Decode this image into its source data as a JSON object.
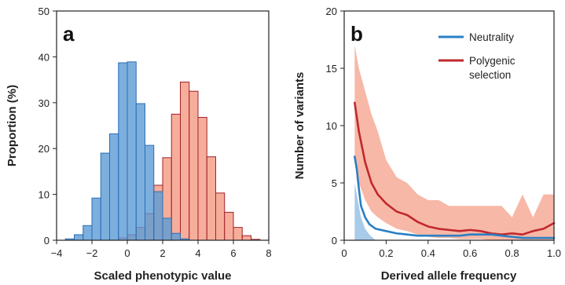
{
  "chart_data": [
    {
      "type": "bar",
      "panel_label": "a",
      "xlabel": "Scaled phenotypic value",
      "ylabel": "Proportion (%)",
      "xlim": [
        -4,
        8
      ],
      "ylim": [
        0,
        50
      ],
      "xticks": [
        -4,
        -2,
        0,
        2,
        4,
        6,
        8
      ],
      "xtick_labels": [
        "−4",
        "−2",
        "0",
        "2",
        "4",
        "6",
        "8"
      ],
      "yticks": [
        0,
        10,
        20,
        30,
        40,
        50
      ],
      "ytick_labels": [
        "0",
        "10",
        "20",
        "30",
        "40",
        "50"
      ],
      "bin_width": 0.5,
      "series": [
        {
          "color": "#5b9bd5",
          "edge": "#2a6db5",
          "bin_starts": [
            -3.5,
            -3.0,
            -2.5,
            -2.0,
            -1.5,
            -1.0,
            -0.5,
            0.0,
            0.5,
            1.0,
            1.5,
            2.0,
            2.5,
            3.0
          ],
          "values": [
            0.3,
            1.2,
            3.2,
            9.2,
            19.0,
            23.2,
            38.7,
            38.9,
            29.8,
            20.7,
            10.6,
            4.8,
            1.5,
            0.3
          ]
        },
        {
          "color": "#f4a08a",
          "edge": "#a0202a",
          "bin_starts": [
            -0.5,
            0.0,
            0.5,
            1.0,
            1.5,
            2.0,
            2.5,
            3.0,
            3.5,
            4.0,
            4.5,
            5.0,
            5.5,
            6.0,
            6.5,
            7.0
          ],
          "values": [
            0.5,
            1.2,
            2.8,
            5.8,
            12.0,
            18.0,
            27.5,
            34.5,
            32.5,
            26.8,
            18.2,
            10.3,
            6.1,
            2.8,
            1.0,
            0.2
          ]
        }
      ]
    },
    {
      "type": "area",
      "panel_label": "b",
      "xlabel": "Derived allele frequency",
      "ylabel": "Number of variants",
      "xlim": [
        0,
        1.0
      ],
      "ylim": [
        0,
        20
      ],
      "xticks": [
        0,
        0.2,
        0.4,
        0.6,
        0.8,
        1.0
      ],
      "xtick_labels": [
        "0",
        "0.2",
        "0.4",
        "0.6",
        "0.8",
        "1.0"
      ],
      "yticks": [
        0,
        5,
        10,
        15,
        20
      ],
      "ytick_labels": [
        "0",
        "5",
        "10",
        "15",
        "20"
      ],
      "legend_position": "top-right",
      "series": [
        {
          "name": "Neutrality",
          "color": "#2a7fc4",
          "band_color": "#6fa8dc",
          "x": [
            0.05,
            0.06,
            0.07,
            0.08,
            0.1,
            0.12,
            0.15,
            0.2,
            0.25,
            0.3,
            0.35,
            0.4,
            0.45,
            0.5,
            0.55,
            0.6,
            0.65,
            0.7,
            0.75,
            0.8,
            0.85,
            0.9,
            0.95,
            1.0
          ],
          "y": [
            7.3,
            6.2,
            4.5,
            3.0,
            2.0,
            1.4,
            1.0,
            0.8,
            0.6,
            0.5,
            0.4,
            0.4,
            0.4,
            0.4,
            0.4,
            0.5,
            0.5,
            0.5,
            0.4,
            0.3,
            0.2,
            0.2,
            0.2,
            0.2
          ],
          "band_low": [
            0,
            0,
            0,
            0,
            0,
            0,
            0,
            0,
            0,
            0,
            0,
            0,
            0,
            0,
            0,
            0,
            0,
            0,
            0,
            0,
            0,
            0,
            0,
            0
          ],
          "band_high": [
            5.0,
            4.0,
            3.0,
            2.0,
            1.0,
            0.5,
            0,
            0,
            0,
            0,
            0,
            0,
            0,
            0,
            0,
            0,
            0,
            0,
            0,
            0,
            0,
            0,
            0,
            0
          ]
        },
        {
          "name": "Polygenic selection",
          "legend_lines": [
            "Polygenic",
            "selection"
          ],
          "color": "#c0282d",
          "band_color": "#f4a08a",
          "x": [
            0.05,
            0.07,
            0.1,
            0.13,
            0.16,
            0.2,
            0.25,
            0.3,
            0.35,
            0.4,
            0.45,
            0.5,
            0.55,
            0.6,
            0.65,
            0.7,
            0.75,
            0.8,
            0.85,
            0.9,
            0.95,
            1.0
          ],
          "y": [
            12.0,
            9.5,
            6.8,
            5.0,
            4.0,
            3.2,
            2.5,
            2.2,
            1.6,
            1.2,
            1.0,
            0.9,
            0.8,
            0.9,
            0.8,
            0.6,
            0.5,
            0.6,
            0.5,
            0.8,
            1.0,
            1.5
          ],
          "band_low": [
            7.0,
            5.0,
            3.5,
            2.5,
            2.0,
            1.5,
            1.0,
            0.8,
            0.5,
            0.3,
            0.2,
            0.2,
            0.1,
            0.1,
            0.1,
            0.0,
            0.0,
            0.0,
            0.0,
            0.0,
            0.0,
            0.0
          ],
          "band_high": [
            17.0,
            15.0,
            13.0,
            11.0,
            9.5,
            7.0,
            5.5,
            5.0,
            4.0,
            3.5,
            3.5,
            3.0,
            3.0,
            3.0,
            3.0,
            3.0,
            3.0,
            2.0,
            4.0,
            2.0,
            4.0,
            4.0
          ]
        }
      ]
    }
  ]
}
